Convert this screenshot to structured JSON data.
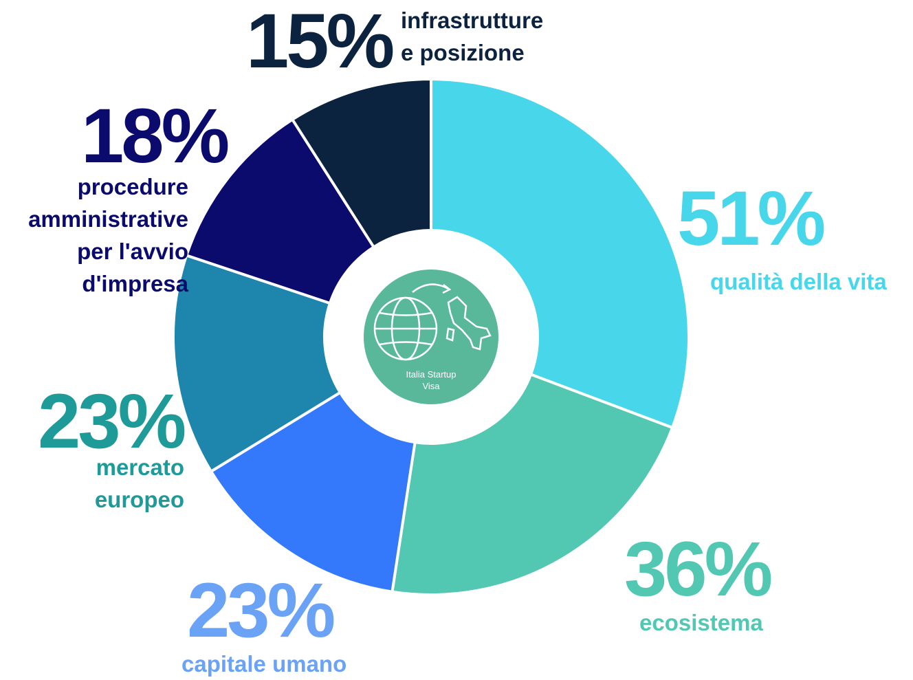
{
  "chart_data": {
    "type": "pie",
    "donut": true,
    "categories": [
      "qualità della vita",
      "ecosistema",
      "capitale umano",
      "mercato\neuropeo",
      "procedure\namministrative\nper l'avvio\nd'impresa",
      "infrastrutture\ne posizione"
    ],
    "values": [
      51,
      36,
      23,
      23,
      18,
      15
    ],
    "value_labels": [
      "51%",
      "36%",
      "23%",
      "23%",
      "18%",
      "15%"
    ],
    "colors": [
      "#47d6ea",
      "#52c7b2",
      "#3478fb",
      "#1e86ad",
      "#0b0b6e",
      "#0c2340"
    ],
    "label_colors": [
      "#47d6ea",
      "#52c7b2",
      "#6aa2f6",
      "#1e9a98",
      "#0b0b6e",
      "#0c2340"
    ],
    "center_label": "Italia Startup\nVisa"
  }
}
